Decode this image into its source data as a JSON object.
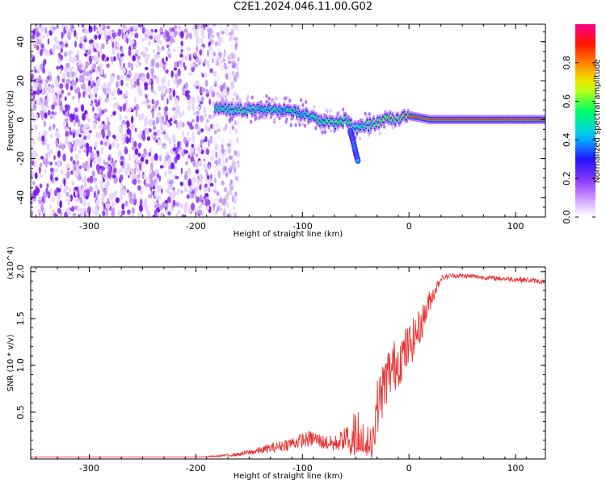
{
  "title": "C2E1.2024.046.11.00.G02",
  "chart_data": [
    {
      "type": "heatmap",
      "xlabel": "Height of straight line (km)",
      "ylabel": "Frequency (Hz)",
      "xlim": [
        -355,
        128
      ],
      "ylim": [
        -50,
        49
      ],
      "xticks": [
        -300,
        -200,
        -100,
        0,
        100
      ],
      "yticks": [
        -40,
        -20,
        0,
        20,
        40
      ],
      "colorbar": {
        "label": "Normalized spectral amplitude",
        "range": [
          0,
          1
        ],
        "ticks": [
          "0.0",
          "0.2",
          "0.4",
          "0.6",
          "0.8"
        ],
        "colormap": "rainbow (white-violet-blue-cyan-green-yellow-orange-red-magenta)"
      },
      "noise_region_x": [
        -355,
        -170
      ],
      "signal_track": {
        "x": [
          -180,
          -160,
          -140,
          -120,
          -100,
          -90,
          -80,
          -70,
          -60,
          -55,
          -50,
          -45,
          -40,
          -30,
          -20,
          -10,
          0,
          20,
          60,
          100,
          128
        ],
        "y": [
          6,
          5,
          5,
          5,
          3,
          1,
          -1,
          -2,
          0,
          -3,
          -5,
          -4,
          -3,
          -2,
          1,
          0,
          2,
          0,
          0,
          0,
          0
        ],
        "amplitude": [
          0.5,
          0.5,
          0.45,
          0.4,
          0.45,
          0.5,
          0.55,
          0.55,
          0.5,
          0.5,
          0.45,
          0.5,
          0.55,
          0.6,
          0.65,
          0.7,
          0.8,
          0.9,
          0.9,
          0.9,
          0.9
        ]
      },
      "branch": {
        "x": [
          -55,
          -52,
          -50,
          -48
        ],
        "y": [
          -6,
          -12,
          -17,
          -21
        ]
      }
    },
    {
      "type": "line",
      "xlabel": "Height of straight line (km)",
      "ylabel": "SNR (10 * v/v)",
      "y_multiplier": "(x10^4)",
      "xlim": [
        -355,
        128
      ],
      "ylim": [
        0,
        2.05
      ],
      "xticks": [
        -300,
        -200,
        -100,
        0,
        100
      ],
      "yticks": [
        0.5,
        1.0,
        1.5,
        2.0
      ],
      "series": [
        {
          "color": "#e8312f",
          "x": [
            -355,
            -300,
            -250,
            -200,
            -180,
            -160,
            -140,
            -120,
            -100,
            -90,
            -80,
            -70,
            -60,
            -50,
            -45,
            -40,
            -35,
            -30,
            -20,
            -10,
            0,
            10,
            20,
            30,
            40,
            60,
            80,
            100,
            110,
            120,
            128
          ],
          "y": [
            0.02,
            0.02,
            0.02,
            0.02,
            0.03,
            0.05,
            0.09,
            0.14,
            0.2,
            0.22,
            0.18,
            0.16,
            0.22,
            0.32,
            0.3,
            0.2,
            0.15,
            0.55,
            0.9,
            1.05,
            1.2,
            1.4,
            1.7,
            1.93,
            1.96,
            1.95,
            1.93,
            1.92,
            1.91,
            1.9,
            1.89
          ],
          "noise": [
            0,
            0,
            0,
            0,
            0.01,
            0.02,
            0.04,
            0.06,
            0.08,
            0.09,
            0.08,
            0.09,
            0.12,
            0.22,
            0.22,
            0.2,
            0.18,
            0.3,
            0.3,
            0.28,
            0.25,
            0.2,
            0.12,
            0.03,
            0.025,
            0.025,
            0.025,
            0.03,
            0.03,
            0.025,
            0.025
          ]
        }
      ]
    }
  ]
}
